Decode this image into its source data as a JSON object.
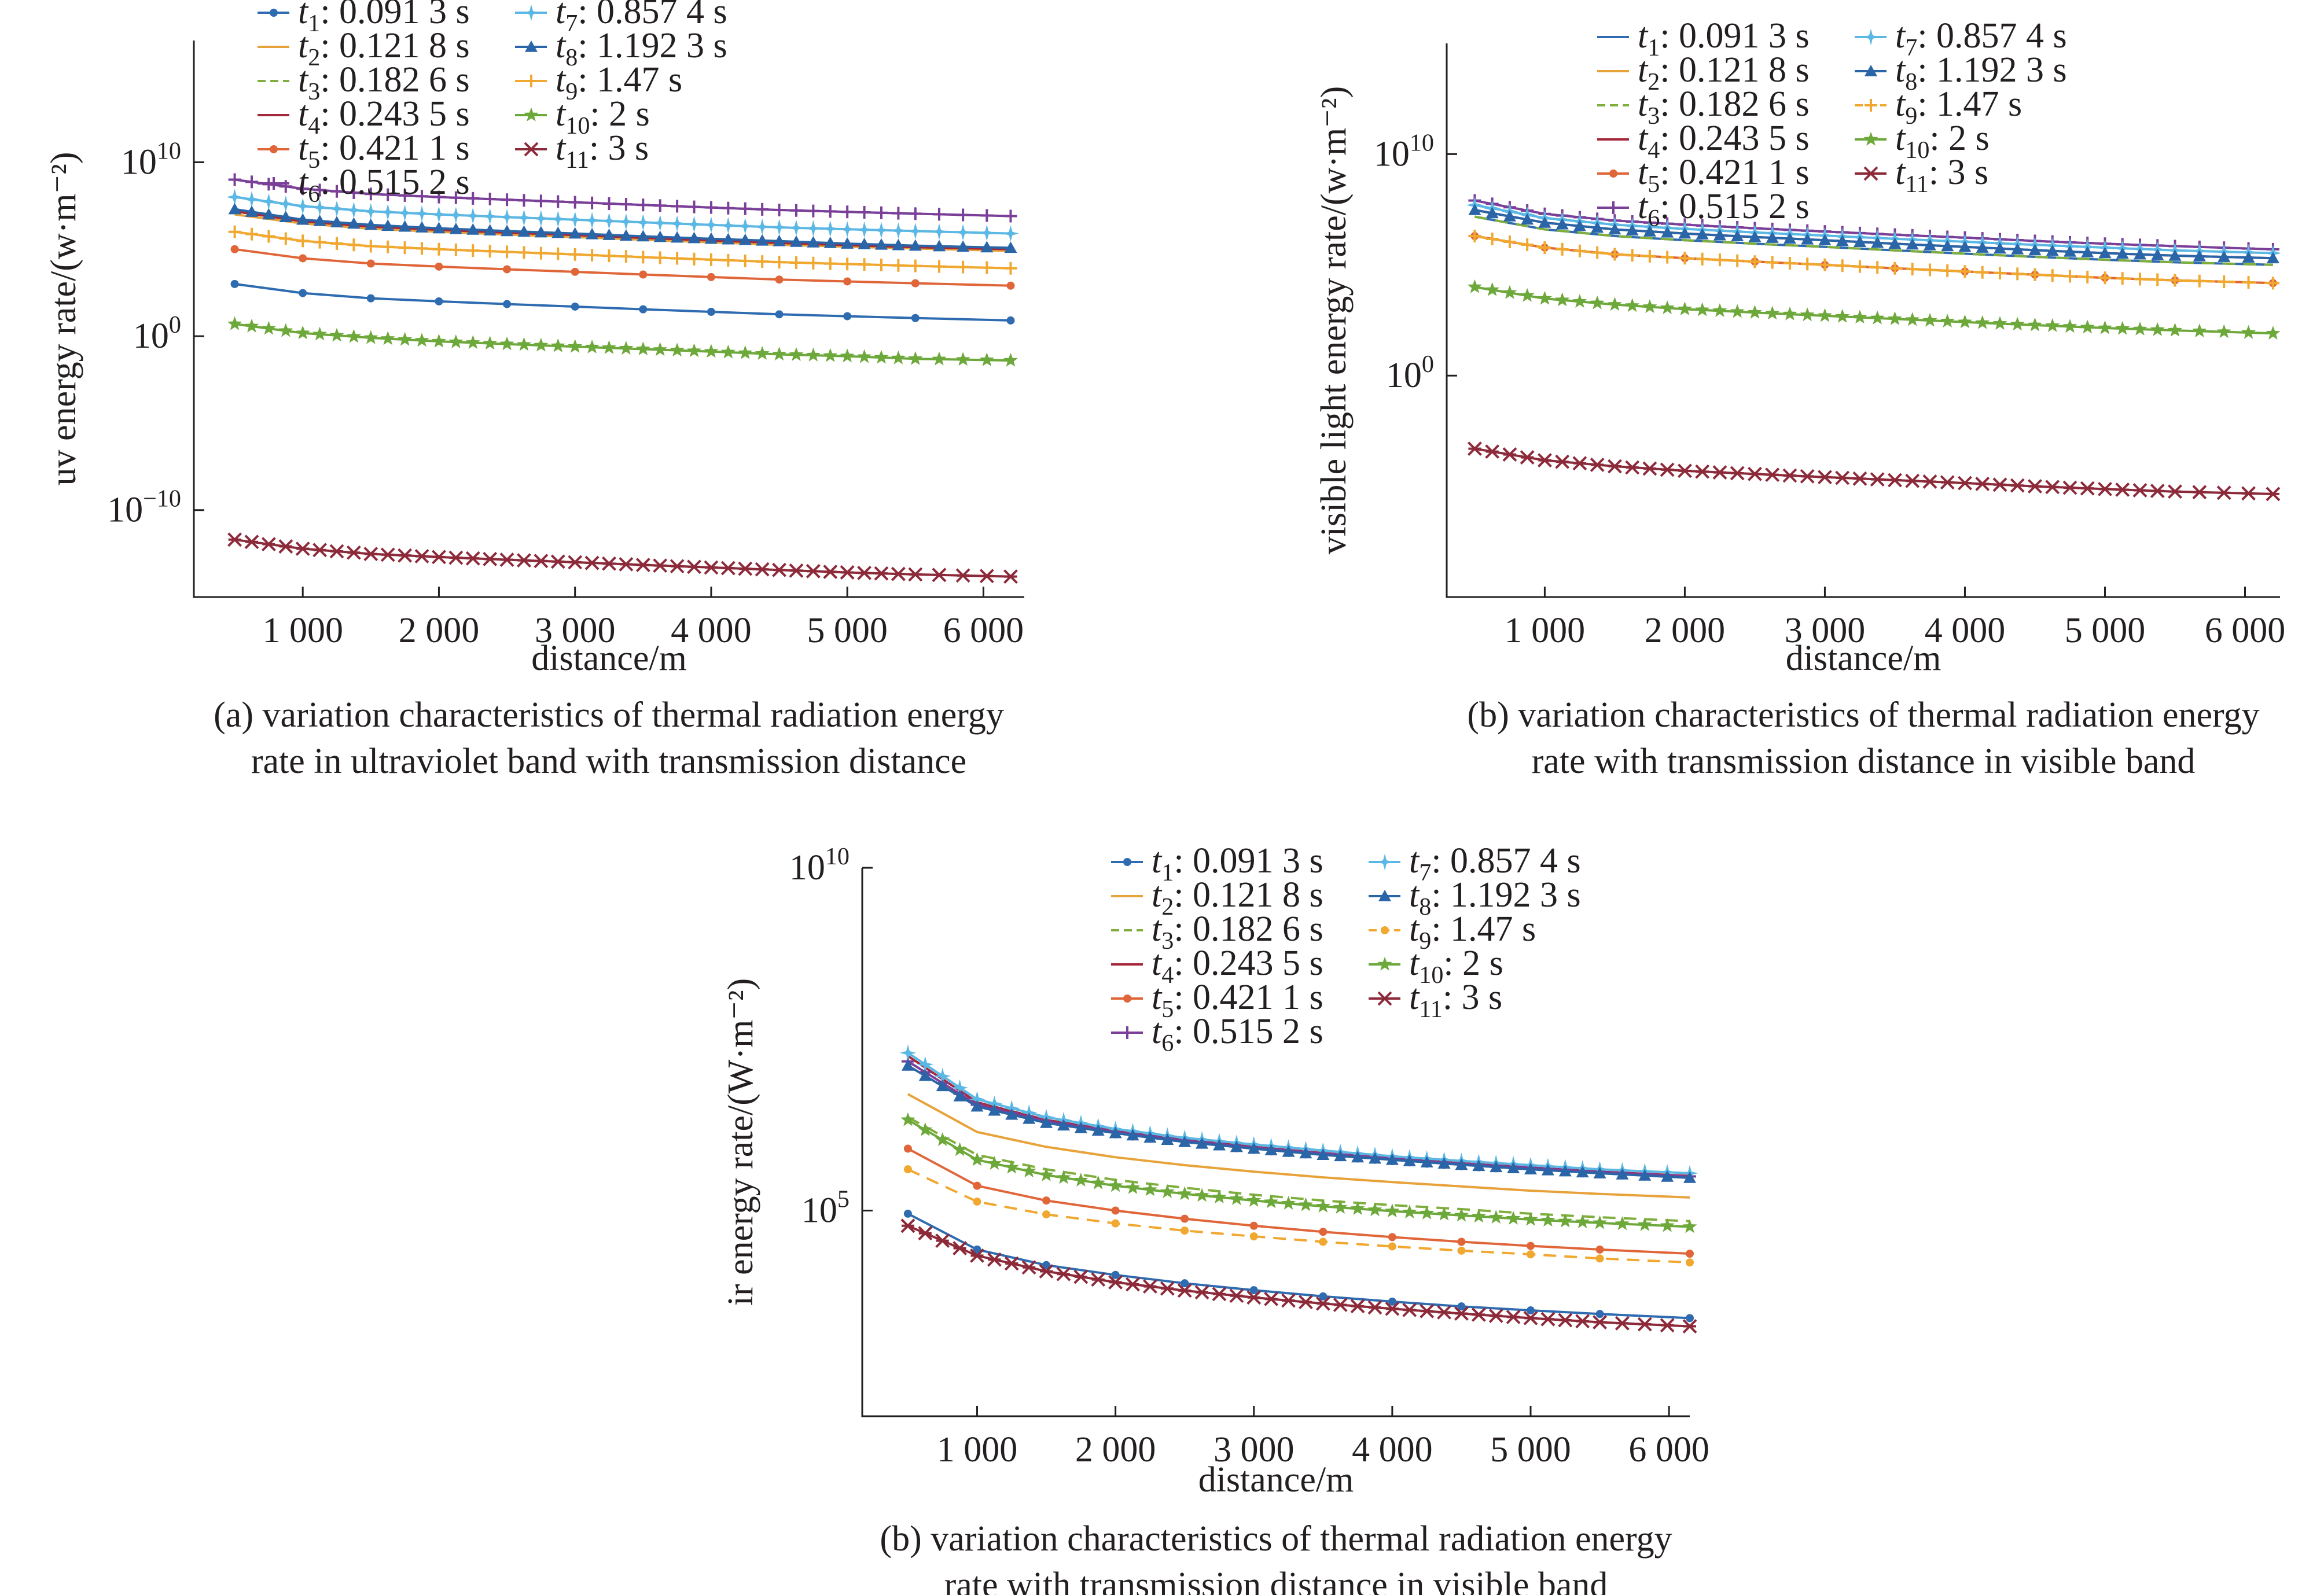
{
  "colors": {
    "t1": "#2e6bb0",
    "t2": "#e8a23a",
    "t3": "#7fae3c",
    "t4": "#a3283b",
    "t5": "#e0663a",
    "t6": "#7a3f98",
    "t7": "#5bb7e4",
    "t8": "#2a65a8",
    "t9": "#f0a830",
    "t10": "#6da83a",
    "t11": "#8c2a3a",
    "axis": "#231f20",
    "marker_red": "#e0302a"
  },
  "chart_data": [
    {
      "id": "uv",
      "type": "line",
      "yscale": "log",
      "title": "",
      "xlabel": "distance/m",
      "ylabel": "uv energy rate/(w·m⁻²)",
      "xlim": [
        200,
        6300
      ],
      "ylim": [
        1e-15,
        1e+17
      ],
      "xticks": [
        1000,
        2000,
        3000,
        4000,
        5000,
        6000
      ],
      "xtick_labels": [
        "1 000",
        "2 000",
        "3 000",
        "4 000",
        "5 000",
        "6 000"
      ],
      "yticks": [
        1e-10,
        1,
        10000000000.0
      ],
      "ytick_labels": [
        {
          "base": "10",
          "exp": "−10"
        },
        {
          "base": "10",
          "exp": "0"
        },
        {
          "base": "10",
          "exp": "10"
        }
      ],
      "caption": [
        "(a) variation characteristics of thermal radiation energy",
        "rate in ultraviolet band with transmission distance"
      ],
      "x": [
        500,
        1000,
        1500,
        2000,
        2500,
        3000,
        3500,
        4000,
        4500,
        5000,
        5500,
        6200
      ],
      "series": [
        {
          "name": "t1: 0.091 3 s",
          "key": "t1",
          "style": "solid",
          "marker": "dot",
          "values": [
            1000.0,
            300.0,
            150.0,
            100.0,
            70.0,
            50.0,
            35.0,
            25.0,
            18.0,
            14.0,
            11.0,
            8
          ]
        },
        {
          "name": "t2: 0.121 8 s",
          "key": "t2",
          "style": "solid",
          "marker": "none",
          "values": [
            10000000.0,
            3000000.0,
            1500000.0,
            1000000.0,
            700000.0,
            500000.0,
            350000.0,
            250000.0,
            180000.0,
            140000.0,
            110000.0,
            80000.0
          ]
        },
        {
          "name": "t3: 0.182 6 s",
          "key": "t3",
          "style": "dashed",
          "marker": "none",
          "values": [
            15000000.0,
            4000000.0,
            2000000.0,
            1300000.0,
            900000.0,
            650000.0,
            450000.0,
            320000.0,
            230000.0,
            170000.0,
            130000.0,
            100000.0
          ]
        },
        {
          "name": "t4: 0.243 5 s",
          "key": "t4",
          "style": "solid",
          "marker": "none",
          "values": [
            15000000.0,
            4000000.0,
            2000000.0,
            1300000.0,
            900000.0,
            650000.0,
            450000.0,
            320000.0,
            230000.0,
            170000.0,
            130000.0,
            100000.0
          ]
        },
        {
          "name": "t5: 0.421 1 s",
          "key": "t5",
          "style": "solid",
          "marker": "dot",
          "values": [
            100000.0,
            30000.0,
            15000.0,
            10000.0,
            7000.0,
            5000.0,
            3500.0,
            2500.0,
            1800.0,
            1400.0,
            1100.0,
            800.0
          ]
        },
        {
          "name": "t6: 0.515 2 s",
          "key": "t6",
          "style": "solid",
          "marker": "plus",
          "values": [
            1000000000.0,
            300000000.0,
            150000000.0,
            100000000.0,
            70000000.0,
            50000000.0,
            35000000.0,
            25000000.0,
            18000000.0,
            14000000.0,
            11000000.0,
            8000000.0
          ]
        },
        {
          "name": "t7: 0.857 4 s",
          "key": "t7",
          "style": "solid",
          "marker": "star4",
          "values": [
            100000000.0,
            30000000.0,
            15000000.0,
            10000000.0,
            7000000.0,
            5000000.0,
            3500000.0,
            2500000.0,
            1800000.0,
            1400000.0,
            1100000.0,
            800000.0
          ]
        },
        {
          "name": "t8: 1.192 3 s",
          "key": "t8",
          "style": "solid",
          "marker": "triangle",
          "values": [
            20000000.0,
            5000000.0,
            2500000.0,
            1600000.0,
            1100000.0,
            800000.0,
            550000.0,
            400000.0,
            290000.0,
            210000.0,
            160000.0,
            120000.0
          ]
        },
        {
          "name": "t9: 1.47 s",
          "key": "t9",
          "style": "solid",
          "marker": "plus",
          "values": [
            1000000.0,
            300000.0,
            150000.0,
            100000.0,
            70000.0,
            50000.0,
            35000.0,
            25000.0,
            18000.0,
            14000.0,
            11000.0,
            8000.0
          ]
        },
        {
          "name": "t10: 2 s",
          "key": "t10",
          "style": "solid",
          "marker": "star",
          "values": [
            5,
            1.5,
            0.8,
            0.5,
            0.35,
            0.25,
            0.18,
            0.13,
            0.09,
            0.07,
            0.05,
            0.04
          ]
        },
        {
          "name": "t11: 3 s",
          "key": "t11",
          "style": "solid",
          "marker": "cross",
          "values": [
            2e-12,
            6e-13,
            3e-13,
            2e-13,
            1.4e-13,
            1e-13,
            7e-14,
            5e-14,
            3.6e-14,
            2.6e-14,
            2e-14,
            1.5e-14
          ]
        }
      ]
    },
    {
      "id": "visible",
      "type": "line",
      "yscale": "log",
      "title": "",
      "xlabel": "distance/m",
      "ylabel": "visible light energy rate/(w·m⁻²)",
      "xlim": [
        300,
        6250
      ],
      "ylim": [
        1e-10,
        1000000000000000.0
      ],
      "xticks": [
        1000,
        2000,
        3000,
        4000,
        5000,
        6000
      ],
      "xtick_labels": [
        "1 000",
        "2 000",
        "3 000",
        "4 000",
        "5 000",
        "6 000"
      ],
      "yticks": [
        1,
        10000000000.0
      ],
      "ytick_labels": [
        {
          "base": "10",
          "exp": "0"
        },
        {
          "base": "10",
          "exp": "10"
        }
      ],
      "caption": [
        "(b) variation characteristics of thermal radiation energy",
        "rate with transmission distance in visible band"
      ],
      "x": [
        500,
        1000,
        1500,
        2000,
        2500,
        3000,
        3500,
        4000,
        4500,
        5000,
        5500,
        6200
      ],
      "series": [
        {
          "name": "t1: 0.091 3 s",
          "key": "t1",
          "style": "solid",
          "marker": "none",
          "values": [
            15000000.0,
            4000000.0,
            2000000.0,
            1300000.0,
            900000.0,
            650000.0,
            450000.0,
            320000.0,
            230000.0,
            170000.0,
            130000.0,
            100000.0
          ]
        },
        {
          "name": "t2: 0.121 8 s",
          "key": "t2",
          "style": "solid",
          "marker": "none",
          "values": [
            2000000.0,
            600000.0,
            300000.0,
            200000.0,
            140000.0,
            100000.0,
            70000.0,
            50000.0,
            36000.0,
            26000.0,
            20000.0,
            15000.0
          ]
        },
        {
          "name": "t3: 0.182 6 s",
          "key": "t3",
          "style": "dashed",
          "marker": "none",
          "values": [
            15000000.0,
            4000000.0,
            2000000.0,
            1300000.0,
            900000.0,
            650000.0,
            450000.0,
            320000.0,
            230000.0,
            170000.0,
            130000.0,
            100000.0
          ]
        },
        {
          "name": "t4: 0.243 5 s",
          "key": "t4",
          "style": "solid",
          "marker": "none",
          "values": [
            30000000.0,
            8000000.0,
            4000000.0,
            2600000.0,
            1800000.0,
            1300000.0,
            900000.0,
            650000.0,
            460000.0,
            340000.0,
            260000.0,
            200000.0
          ]
        },
        {
          "name": "t5: 0.421 1 s",
          "key": "t5",
          "style": "solid",
          "marker": "dot",
          "values": [
            2000000.0,
            600000.0,
            300000.0,
            200000.0,
            140000.0,
            100000.0,
            70000.0,
            50000.0,
            36000.0,
            26000.0,
            20000.0,
            15000.0
          ]
        },
        {
          "name": "t6: 0.515 2 s",
          "key": "t6",
          "style": "solid",
          "marker": "plus",
          "values": [
            80000000.0,
            20000000.0,
            10000000.0,
            6500000.0,
            4500000.0,
            3200000.0,
            2300000.0,
            1700000.0,
            1200000.0,
            900000.0,
            700000.0,
            500000.0
          ]
        },
        {
          "name": "t7: 0.857 4 s",
          "key": "t7",
          "style": "solid",
          "marker": "star4",
          "values": [
            50000000.0,
            13000000.0,
            6500000.0,
            4200000.0,
            2900000.0,
            2100000.0,
            1500000.0,
            1100000.0,
            800000.0,
            600000.0,
            450000.0,
            340000.0
          ]
        },
        {
          "name": "t8: 1.192 3 s",
          "key": "t8",
          "style": "solid",
          "marker": "triangle",
          "values": [
            30000000.0,
            8000000.0,
            4000000.0,
            2600000.0,
            1800000.0,
            1300000.0,
            900000.0,
            650000.0,
            460000.0,
            340000.0,
            260000.0,
            200000.0
          ]
        },
        {
          "name": "t9: 1.47 s",
          "key": "t9",
          "style": "dashed",
          "marker": "plus",
          "values": [
            2000000.0,
            600000.0,
            300000.0,
            200000.0,
            140000.0,
            100000.0,
            70000.0,
            50000.0,
            36000.0,
            26000.0,
            20000.0,
            15000.0
          ]
        },
        {
          "name": "t10: 2 s",
          "key": "t10",
          "style": "solid",
          "marker": "star",
          "values": [
            10000.0,
            3000.0,
            1600.0,
            1000.0,
            700.0,
            500.0,
            360.0,
            260.0,
            190.0,
            140.0,
            110.0,
            80.0
          ]
        },
        {
          "name": "t11: 3 s",
          "key": "t11",
          "style": "solid",
          "marker": "cross",
          "values": [
            0.0005,
            0.00015,
            8e-05,
            5e-05,
            3.6e-05,
            2.6e-05,
            1.9e-05,
            1.4e-05,
            1e-05,
            7.5e-06,
            5.8e-06,
            4.5e-06
          ]
        }
      ]
    },
    {
      "id": "ir",
      "type": "line",
      "yscale": "log",
      "title": "",
      "xlabel": "distance/m",
      "ylabel": "ir energy rate/(W·m⁻²)",
      "xlim": [
        170,
        6150
      ],
      "ylim": [
        100.0,
        10000000000.0
      ],
      "xticks": [
        1000,
        2000,
        3000,
        4000,
        5000,
        6000
      ],
      "xtick_labels": [
        "1 000",
        "2 000",
        "3 000",
        "4 000",
        "5 000",
        "6 000"
      ],
      "yticks": [
        100000.0,
        10000000000.0
      ],
      "ytick_labels": [
        {
          "base": "10",
          "exp": "5"
        },
        {
          "base": "10",
          "exp": "10"
        }
      ],
      "caption": [
        "(b) variation characteristics of thermal radiation energy",
        "rate with transmission distance in visible band"
      ],
      "x": [
        500,
        1000,
        1500,
        2000,
        2500,
        3000,
        3500,
        4000,
        4500,
        5000,
        5500,
        6150
      ],
      "series": [
        {
          "name": "t1: 0.091 3 s",
          "key": "t1",
          "style": "solid",
          "marker": "dot",
          "values": [
            90000.0,
            27000.0,
            16000.0,
            11500.0,
            8700.0,
            6900.0,
            5600.0,
            4700.0,
            4000.0,
            3500.0,
            3100.0,
            2700.0
          ]
        },
        {
          "name": "t2: 0.121 8 s",
          "key": "t2",
          "style": "solid",
          "marker": "none",
          "values": [
            5000000.0,
            1400000.0,
            850000.0,
            600000.0,
            460000.0,
            370000.0,
            305000.0,
            260000.0,
            225000.0,
            195000.0,
            175000.0,
            155000.0
          ]
        },
        {
          "name": "t3: 0.182 6 s",
          "key": "t3",
          "style": "dashed",
          "marker": "none",
          "values": [
            2300000.0,
            650000.0,
            400000.0,
            280000.0,
            215000.0,
            170000.0,
            140000.0,
            120000.0,
            105000.0,
            90000.0,
            80000.0,
            70000.0
          ]
        },
        {
          "name": "t4: 0.243 5 s",
          "key": "t4",
          "style": "solid",
          "marker": "none",
          "values": [
            18000000.0,
            3800000.0,
            2100000.0,
            1450000.0,
            1080000.0,
            850000.0,
            690000.0,
            580000.0,
            490000.0,
            425000.0,
            370000.0,
            320000.0
          ]
        },
        {
          "name": "t5: 0.421 1 s",
          "key": "t5",
          "style": "solid",
          "marker": "dot",
          "values": [
            800000.0,
            230000.0,
            140000.0,
            100000.0,
            76000.0,
            60000.0,
            49000.0,
            41000.0,
            35000.0,
            30500.0,
            27000.0,
            23500.0
          ]
        },
        {
          "name": "t6: 0.515 2 s",
          "key": "t6",
          "style": "solid",
          "marker": "plus",
          "values": [
            15000000.0,
            3500000.0,
            2000000.0,
            1400000.0,
            1050000.0,
            830000.0,
            680000.0,
            570000.0,
            480000.0,
            420000.0,
            365000.0,
            315000.0
          ]
        },
        {
          "name": "t7: 0.857 4 s",
          "key": "t7",
          "style": "solid",
          "marker": "star4",
          "values": [
            20000000.0,
            4200000.0,
            2300000.0,
            1550000.0,
            1150000.0,
            920000.0,
            750000.0,
            620000.0,
            530000.0,
            460000.0,
            400000.0,
            350000.0
          ]
        },
        {
          "name": "t8: 1.192 3 s",
          "key": "t8",
          "style": "solid",
          "marker": "triangle",
          "values": [
            13000000.0,
            3300000.0,
            1900000.0,
            1350000.0,
            1000000.0,
            800000.0,
            650000.0,
            550000.0,
            465000.0,
            400000.0,
            350000.0,
            300000.0
          ]
        },
        {
          "name": "t9: 1.47 s",
          "key": "t9",
          "style": "dashed",
          "marker": "dot",
          "values": [
            400000.0,
            135000.0,
            88000.0,
            65000.0,
            51000.0,
            42000.0,
            35000.0,
            30000.0,
            26000.0,
            23000.0,
            20000.0,
            17500.0
          ]
        },
        {
          "name": "t10: 2 s",
          "key": "t10",
          "style": "solid",
          "marker": "star",
          "values": [
            2100000.0,
            550000.0,
            330000.0,
            230000.0,
            175000.0,
            140000.0,
            115000.0,
            98000.0,
            85000.0,
            74000.0,
            66000.0,
            58000.0
          ]
        },
        {
          "name": "t11: 3 s",
          "key": "t11",
          "style": "solid",
          "marker": "cross",
          "values": [
            60000.0,
            22000.0,
            13000.0,
            9000.0,
            6800.0,
            5400.0,
            4400.0,
            3700.0,
            3150.0,
            2700.0,
            2350.0,
            2050.0
          ]
        }
      ]
    }
  ]
}
